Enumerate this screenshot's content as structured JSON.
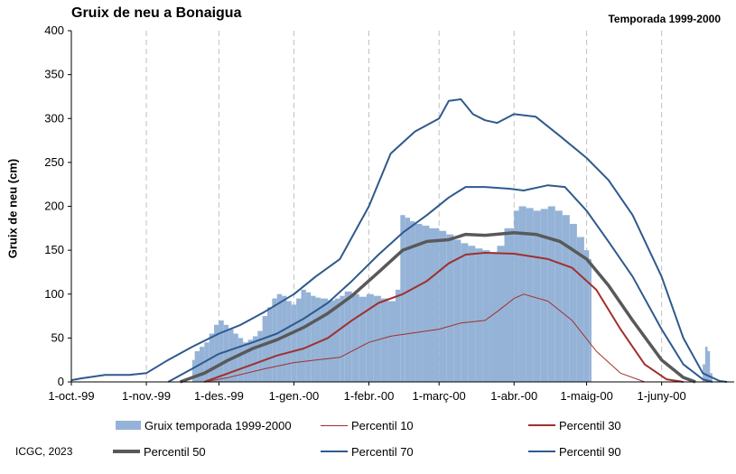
{
  "title": "Gruix de neu a Bonaigua",
  "season_label": "Temporada 1999-2000",
  "credit": "ICGC, 2023",
  "colors": {
    "bars": "#95b3d7",
    "p10": "#a0302c",
    "p30": "#a0302c",
    "p50": "#595959",
    "p70": "#2e5a8c",
    "p90": "#2e5a8c",
    "grid": "#c0c0c0"
  },
  "chart_data": {
    "type": "bar+line",
    "ylabel": "Gruix de neu (cm)",
    "xlabel": "",
    "ylim": [
      0,
      400
    ],
    "yticks": [
      0,
      50,
      100,
      150,
      200,
      250,
      300,
      350,
      400
    ],
    "grid": "dashed vertical at month starts",
    "xlim": [
      "1999-10-01",
      "2000-07-01"
    ],
    "xticks": [
      {
        "date": "1999-10-01",
        "label": "1-oct.-99"
      },
      {
        "date": "1999-11-01",
        "label": "1-nov.-99"
      },
      {
        "date": "1999-12-01",
        "label": "1-des.-99"
      },
      {
        "date": "2000-01-01",
        "label": "1-gen.-00"
      },
      {
        "date": "2000-02-01",
        "label": "1-febr.-00"
      },
      {
        "date": "2000-03-01",
        "label": "1-març-00"
      },
      {
        "date": "2000-04-01",
        "label": "1-abr.-00"
      },
      {
        "date": "2000-05-01",
        "label": "1-maig-00"
      },
      {
        "date": "2000-06-01",
        "label": "1-juny-00"
      }
    ],
    "legend_position": "bottom",
    "legend": [
      {
        "key": "bars",
        "label": "Gruix temporada 1999-2000"
      },
      {
        "key": "p10",
        "label": "Percentil 10"
      },
      {
        "key": "p30",
        "label": "Percentil 30"
      },
      {
        "key": "p50",
        "label": "Percentil 50"
      },
      {
        "key": "p70",
        "label": "Percentil 70"
      },
      {
        "key": "p90",
        "label": "Percentil 90"
      }
    ],
    "bars": [
      [
        "1999-11-19",
        0
      ],
      [
        "1999-11-20",
        25
      ],
      [
        "1999-11-21",
        35
      ],
      [
        "1999-11-23",
        40
      ],
      [
        "1999-11-25",
        45
      ],
      [
        "1999-11-27",
        55
      ],
      [
        "1999-11-29",
        65
      ],
      [
        "1999-12-01",
        70
      ],
      [
        "1999-12-03",
        65
      ],
      [
        "1999-12-05",
        60
      ],
      [
        "1999-12-07",
        55
      ],
      [
        "1999-12-09",
        50
      ],
      [
        "1999-12-11",
        45
      ],
      [
        "1999-12-13",
        48
      ],
      [
        "1999-12-15",
        52
      ],
      [
        "1999-12-17",
        58
      ],
      [
        "1999-12-19",
        75
      ],
      [
        "1999-12-21",
        85
      ],
      [
        "1999-12-23",
        95
      ],
      [
        "1999-12-25",
        100
      ],
      [
        "1999-12-27",
        98
      ],
      [
        "1999-12-29",
        92
      ],
      [
        "1999-12-31",
        88
      ],
      [
        "2000-01-02",
        95
      ],
      [
        "2000-01-04",
        105
      ],
      [
        "2000-01-06",
        102
      ],
      [
        "2000-01-08",
        98
      ],
      [
        "2000-01-10",
        96
      ],
      [
        "2000-01-12",
        95
      ],
      [
        "2000-01-15",
        93
      ],
      [
        "2000-01-18",
        95
      ],
      [
        "2000-01-20",
        98
      ],
      [
        "2000-01-22",
        103
      ],
      [
        "2000-01-25",
        100
      ],
      [
        "2000-01-28",
        97
      ],
      [
        "2000-01-31",
        100
      ],
      [
        "2000-02-03",
        98
      ],
      [
        "2000-02-06",
        95
      ],
      [
        "2000-02-09",
        92
      ],
      [
        "2000-02-12",
        105
      ],
      [
        "2000-02-14",
        190
      ],
      [
        "2000-02-16",
        187
      ],
      [
        "2000-02-18",
        183
      ],
      [
        "2000-02-20",
        180
      ],
      [
        "2000-02-23",
        178
      ],
      [
        "2000-02-26",
        175
      ],
      [
        "2000-03-01",
        172
      ],
      [
        "2000-03-04",
        168
      ],
      [
        "2000-03-07",
        162
      ],
      [
        "2000-03-10",
        158
      ],
      [
        "2000-03-13",
        155
      ],
      [
        "2000-03-16",
        152
      ],
      [
        "2000-03-19",
        150
      ],
      [
        "2000-03-22",
        148
      ],
      [
        "2000-03-25",
        155
      ],
      [
        "2000-03-28",
        175
      ],
      [
        "2000-04-01",
        195
      ],
      [
        "2000-04-03",
        200
      ],
      [
        "2000-04-06",
        198
      ],
      [
        "2000-04-09",
        195
      ],
      [
        "2000-04-12",
        197
      ],
      [
        "2000-04-15",
        200
      ],
      [
        "2000-04-18",
        195
      ],
      [
        "2000-04-21",
        190
      ],
      [
        "2000-04-24",
        180
      ],
      [
        "2000-04-27",
        165
      ],
      [
        "2000-04-30",
        150
      ],
      [
        "2000-05-02",
        140
      ],
      [
        "2000-05-03",
        0
      ],
      [
        "2000-06-18",
        20
      ],
      [
        "2000-06-19",
        40
      ],
      [
        "2000-06-20",
        35
      ],
      [
        "2000-06-21",
        10
      ],
      [
        "2000-06-22",
        0
      ]
    ],
    "series": [
      {
        "key": "p10",
        "name": "Percentil 10",
        "points": [
          [
            "1999-11-25",
            0
          ],
          [
            "1999-12-05",
            5
          ],
          [
            "1999-12-20",
            15
          ],
          [
            "2000-01-01",
            22
          ],
          [
            "2000-01-10",
            25
          ],
          [
            "2000-01-20",
            28
          ],
          [
            "2000-02-01",
            45
          ],
          [
            "2000-02-10",
            52
          ],
          [
            "2000-02-20",
            56
          ],
          [
            "2000-03-01",
            60
          ],
          [
            "2000-03-10",
            67
          ],
          [
            "2000-03-20",
            70
          ],
          [
            "2000-03-25",
            80
          ],
          [
            "2000-04-01",
            95
          ],
          [
            "2000-04-05",
            100
          ],
          [
            "2000-04-15",
            92
          ],
          [
            "2000-04-25",
            70
          ],
          [
            "2000-05-05",
            35
          ],
          [
            "2000-05-15",
            10
          ],
          [
            "2000-05-25",
            0
          ]
        ]
      },
      {
        "key": "p30",
        "name": "Percentil 30",
        "points": [
          [
            "1999-11-25",
            0
          ],
          [
            "1999-12-05",
            10
          ],
          [
            "1999-12-15",
            20
          ],
          [
            "1999-12-25",
            30
          ],
          [
            "2000-01-05",
            38
          ],
          [
            "2000-01-15",
            50
          ],
          [
            "2000-01-25",
            70
          ],
          [
            "2000-02-05",
            90
          ],
          [
            "2000-02-15",
            100
          ],
          [
            "2000-02-25",
            115
          ],
          [
            "2000-03-05",
            135
          ],
          [
            "2000-03-12",
            145
          ],
          [
            "2000-03-20",
            147
          ],
          [
            "2000-04-01",
            146
          ],
          [
            "2000-04-15",
            140
          ],
          [
            "2000-04-25",
            130
          ],
          [
            "2000-05-05",
            105
          ],
          [
            "2000-05-15",
            60
          ],
          [
            "2000-05-25",
            20
          ],
          [
            "2000-06-03",
            3
          ],
          [
            "2000-06-10",
            0
          ]
        ]
      },
      {
        "key": "p50",
        "name": "Percentil 50",
        "points": [
          [
            "1999-11-15",
            0
          ],
          [
            "1999-11-25",
            10
          ],
          [
            "1999-12-05",
            25
          ],
          [
            "1999-12-15",
            38
          ],
          [
            "1999-12-25",
            48
          ],
          [
            "2000-01-05",
            62
          ],
          [
            "2000-01-15",
            78
          ],
          [
            "2000-01-25",
            98
          ],
          [
            "2000-02-05",
            125
          ],
          [
            "2000-02-15",
            150
          ],
          [
            "2000-02-25",
            160
          ],
          [
            "2000-03-05",
            162
          ],
          [
            "2000-03-12",
            168
          ],
          [
            "2000-03-20",
            167
          ],
          [
            "2000-04-01",
            170
          ],
          [
            "2000-04-10",
            168
          ],
          [
            "2000-04-20",
            160
          ],
          [
            "2000-05-01",
            140
          ],
          [
            "2000-05-10",
            110
          ],
          [
            "2000-05-20",
            70
          ],
          [
            "2000-06-01",
            25
          ],
          [
            "2000-06-10",
            5
          ],
          [
            "2000-06-15",
            0
          ]
        ]
      },
      {
        "key": "p70",
        "name": "Percentil 70",
        "points": [
          [
            "1999-11-10",
            0
          ],
          [
            "1999-11-20",
            15
          ],
          [
            "1999-12-01",
            32
          ],
          [
            "1999-12-15",
            45
          ],
          [
            "1999-12-25",
            55
          ],
          [
            "2000-01-05",
            72
          ],
          [
            "2000-01-15",
            90
          ],
          [
            "2000-01-25",
            115
          ],
          [
            "2000-02-05",
            145
          ],
          [
            "2000-02-15",
            170
          ],
          [
            "2000-02-25",
            190
          ],
          [
            "2000-03-05",
            210
          ],
          [
            "2000-03-12",
            222
          ],
          [
            "2000-03-20",
            222
          ],
          [
            "2000-03-30",
            220
          ],
          [
            "2000-04-05",
            218
          ],
          [
            "2000-04-15",
            224
          ],
          [
            "2000-04-22",
            222
          ],
          [
            "2000-05-01",
            195
          ],
          [
            "2000-05-10",
            160
          ],
          [
            "2000-05-20",
            120
          ],
          [
            "2000-06-01",
            60
          ],
          [
            "2000-06-10",
            20
          ],
          [
            "2000-06-18",
            3
          ],
          [
            "2000-06-22",
            0
          ]
        ]
      },
      {
        "key": "p90",
        "name": "Percentil 90",
        "points": [
          [
            "1999-10-01",
            2
          ],
          [
            "1999-10-05",
            4
          ],
          [
            "1999-10-15",
            8
          ],
          [
            "1999-10-25",
            8
          ],
          [
            "1999-11-01",
            10
          ],
          [
            "1999-11-10",
            25
          ],
          [
            "1999-11-20",
            40
          ],
          [
            "1999-12-01",
            55
          ],
          [
            "1999-12-10",
            65
          ],
          [
            "1999-12-20",
            80
          ],
          [
            "2000-01-01",
            100
          ],
          [
            "2000-01-10",
            120
          ],
          [
            "2000-01-20",
            140
          ],
          [
            "2000-02-01",
            200
          ],
          [
            "2000-02-10",
            260
          ],
          [
            "2000-02-20",
            285
          ],
          [
            "2000-03-01",
            300
          ],
          [
            "2000-03-05",
            320
          ],
          [
            "2000-03-10",
            322
          ],
          [
            "2000-03-15",
            305
          ],
          [
            "2000-03-20",
            298
          ],
          [
            "2000-03-25",
            295
          ],
          [
            "2000-04-01",
            305
          ],
          [
            "2000-04-10",
            302
          ],
          [
            "2000-04-20",
            280
          ],
          [
            "2000-05-01",
            255
          ],
          [
            "2000-05-10",
            230
          ],
          [
            "2000-05-20",
            190
          ],
          [
            "2000-06-01",
            120
          ],
          [
            "2000-06-10",
            50
          ],
          [
            "2000-06-18",
            10
          ],
          [
            "2000-06-25",
            1
          ],
          [
            "2000-06-28",
            0
          ]
        ]
      }
    ]
  }
}
